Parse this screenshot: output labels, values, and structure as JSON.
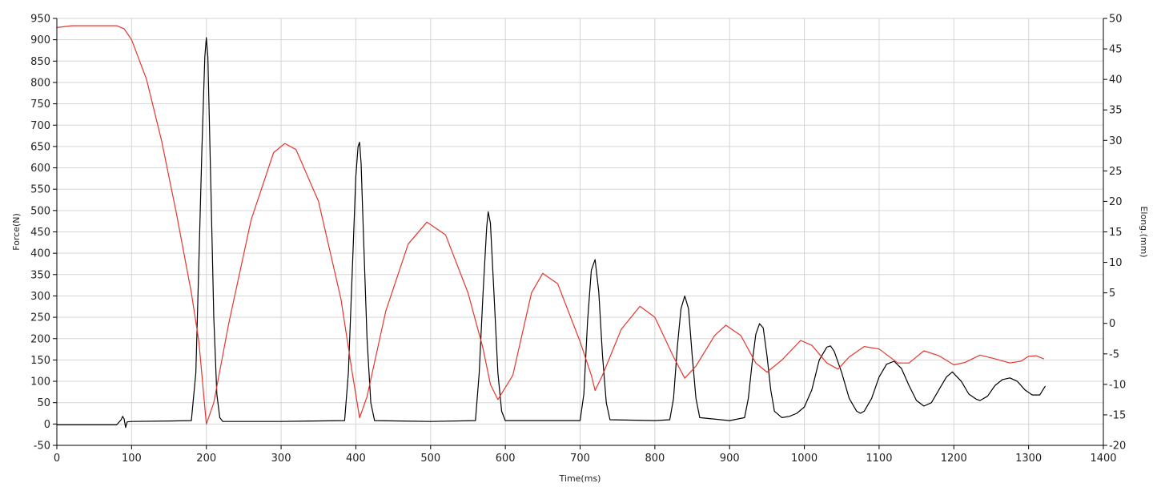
{
  "chart_data": {
    "type": "line",
    "xlabel": "Time(ms)",
    "ylabel": "Force(N)",
    "y2label": "Elong.(mm)",
    "xlim": [
      0,
      1400
    ],
    "ylim": [
      -50,
      950
    ],
    "y2lim": [
      -20,
      50
    ],
    "x_ticks": [
      0,
      100,
      200,
      300,
      400,
      500,
      600,
      700,
      800,
      900,
      1000,
      1100,
      1200,
      1300,
      1400
    ],
    "y_ticks": [
      -50,
      0,
      50,
      100,
      150,
      200,
      250,
      300,
      350,
      400,
      450,
      500,
      550,
      600,
      650,
      700,
      750,
      800,
      850,
      900,
      950
    ],
    "y2_ticks": [
      -20,
      -15,
      -10,
      -5,
      0,
      5,
      10,
      15,
      20,
      25,
      30,
      35,
      40,
      45,
      50
    ],
    "grid": true,
    "series": [
      {
        "axis": "left",
        "color": "#000000",
        "x": [
          0,
          80,
          86,
          88,
          90,
          92,
          94,
          100,
          150,
          180,
          186,
          190,
          194,
          198,
          200,
          202,
          206,
          210,
          214,
          218,
          222,
          300,
          385,
          390,
          395,
          400,
          403,
          405,
          407,
          410,
          415,
          420,
          425,
          500,
          560,
          565,
          570,
          575,
          577,
          580,
          585,
          590,
          595,
          600,
          700,
          705,
          710,
          715,
          720,
          725,
          730,
          735,
          740,
          800,
          820,
          825,
          830,
          835,
          840,
          845,
          850,
          855,
          860,
          900,
          920,
          925,
          930,
          935,
          940,
          945,
          950,
          955,
          960,
          970,
          980,
          990,
          1000,
          1010,
          1020,
          1030,
          1035,
          1040,
          1050,
          1060,
          1070,
          1075,
          1080,
          1090,
          1100,
          1110,
          1120,
          1130,
          1140,
          1150,
          1160,
          1170,
          1180,
          1190,
          1198,
          1210,
          1220,
          1230,
          1235,
          1245,
          1255,
          1265,
          1275,
          1285,
          1295,
          1305,
          1315,
          1322
        ],
        "y": [
          -2,
          -2,
          10,
          18,
          12,
          -8,
          5,
          6,
          7,
          8,
          120,
          380,
          640,
          860,
          905,
          860,
          560,
          250,
          70,
          15,
          6,
          6,
          8,
          120,
          350,
          580,
          650,
          660,
          610,
          450,
          200,
          50,
          8,
          6,
          8,
          120,
          300,
          460,
          497,
          470,
          300,
          120,
          30,
          8,
          8,
          70,
          240,
          360,
          385,
          310,
          160,
          50,
          10,
          8,
          10,
          60,
          180,
          270,
          300,
          270,
          160,
          60,
          15,
          8,
          15,
          60,
          140,
          210,
          235,
          225,
          160,
          80,
          30,
          15,
          18,
          25,
          40,
          80,
          150,
          180,
          183,
          170,
          120,
          60,
          30,
          25,
          30,
          60,
          110,
          140,
          147,
          130,
          90,
          55,
          42,
          50,
          80,
          110,
          122,
          100,
          70,
          58,
          55,
          65,
          90,
          104,
          108,
          100,
          80,
          68,
          68,
          88
        ]
      },
      {
        "axis": "right",
        "color": "#e8352e",
        "x": [
          0,
          20,
          50,
          80,
          90,
          100,
          120,
          140,
          160,
          180,
          190,
          200,
          210,
          230,
          260,
          290,
          305,
          320,
          350,
          380,
          395,
          405,
          415,
          440,
          470,
          495,
          520,
          550,
          570,
          580,
          590,
          610,
          635,
          650,
          670,
          700,
          715,
          720,
          730,
          755,
          780,
          800,
          825,
          840,
          855,
          880,
          895,
          915,
          935,
          950,
          970,
          995,
          1010,
          1030,
          1045,
          1060,
          1080,
          1100,
          1125,
          1140,
          1160,
          1180,
          1200,
          1215,
          1235,
          1255,
          1275,
          1290,
          1300,
          1310,
          1320
        ],
        "y": [
          48.5,
          48.8,
          48.8,
          48.8,
          48.3,
          46.5,
          40,
          30,
          18,
          5,
          -3,
          -16.5,
          -13,
          0,
          17,
          28,
          29.5,
          28.5,
          20,
          4,
          -8,
          -15.5,
          -12,
          2,
          13,
          16.6,
          14.5,
          5,
          -4,
          -10,
          -12.5,
          -8.5,
          5,
          8.2,
          6.5,
          -3,
          -8.5,
          -11,
          -8.5,
          -1,
          2.8,
          1,
          -5.5,
          -9,
          -7,
          -2,
          -0.3,
          -2,
          -6.5,
          -8,
          -6,
          -2.8,
          -3.6,
          -6.5,
          -7.5,
          -5.5,
          -3.8,
          -4.2,
          -6.5,
          -6.5,
          -4.5,
          -5.3,
          -6.8,
          -6.4,
          -5.2,
          -5.8,
          -6.5,
          -6.2,
          -5.4,
          -5.3,
          -5.8
        ]
      }
    ]
  }
}
